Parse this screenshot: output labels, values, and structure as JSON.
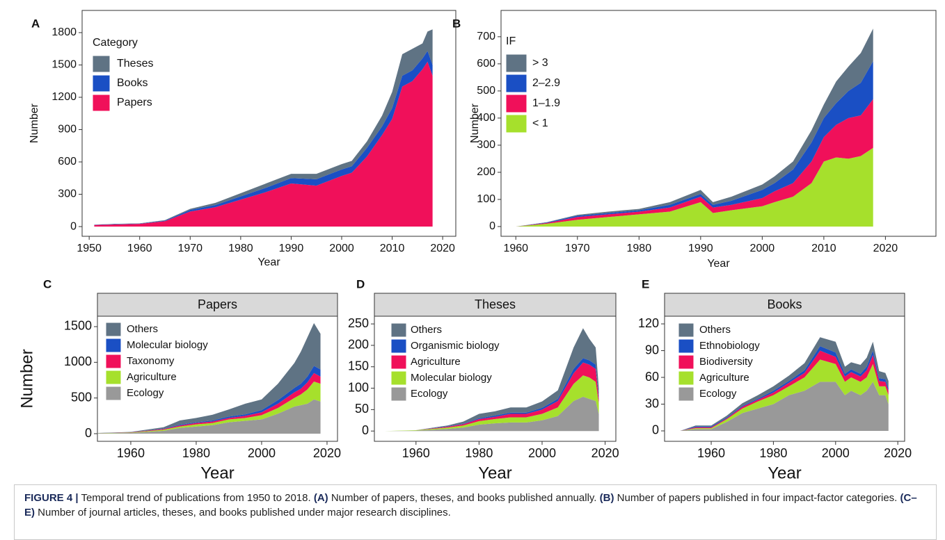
{
  "chart_data": [
    {
      "type": "area",
      "label": "A",
      "xlabel": "Year",
      "ylabel": "Number",
      "legend_title": "Category",
      "x": [
        1951,
        1955,
        1960,
        1965,
        1970,
        1975,
        1980,
        1985,
        1990,
        1995,
        2000,
        2002,
        2005,
        2008,
        2010,
        2012,
        2014,
        2016,
        2017,
        2018
      ],
      "series": [
        {
          "name": "Papers",
          "color": "#f0105a",
          "values": [
            15,
            20,
            25,
            50,
            140,
            180,
            250,
            320,
            400,
            380,
            470,
            500,
            650,
            850,
            1000,
            1300,
            1350,
            1460,
            1530,
            1400
          ]
        },
        {
          "name": "Books",
          "color": "#1a4fc4",
          "values": [
            2,
            3,
            3,
            5,
            15,
            20,
            30,
            40,
            50,
            60,
            60,
            60,
            80,
            80,
            100,
            100,
            100,
            100,
            100,
            100
          ]
        },
        {
          "name": "Theses",
          "color": "#5f7384",
          "values": [
            1,
            2,
            2,
            5,
            10,
            20,
            30,
            40,
            40,
            50,
            50,
            50,
            60,
            100,
            150,
            200,
            200,
            140,
            180,
            330
          ]
        }
      ],
      "xlim": [
        1948.6,
        2022.6
      ],
      "xticks": [
        1950,
        1960,
        1970,
        1980,
        1990,
        2000,
        2010,
        2020
      ],
      "ylim": [
        -90,
        2006
      ],
      "yticks": [
        0,
        300,
        600,
        900,
        1200,
        1500,
        1800
      ],
      "grid": false
    },
    {
      "type": "area",
      "label": "B",
      "xlabel": "Year",
      "ylabel": "Number",
      "legend_title": "IF",
      "x": [
        1960,
        1965,
        1970,
        1975,
        1980,
        1985,
        1990,
        1992,
        1995,
        2000,
        2002,
        2005,
        2008,
        2010,
        2012,
        2014,
        2016,
        2018
      ],
      "series": [
        {
          "name": "< 1",
          "color": "#a6e02c",
          "values": [
            0,
            10,
            25,
            35,
            45,
            55,
            90,
            50,
            60,
            75,
            90,
            110,
            160,
            240,
            255,
            250,
            260,
            290
          ]
        },
        {
          "name": "1–1.9",
          "color": "#f0105a",
          "values": [
            0,
            3,
            10,
            10,
            10,
            15,
            20,
            20,
            20,
            30,
            40,
            50,
            80,
            90,
            120,
            150,
            150,
            180
          ]
        },
        {
          "name": "2–2.9",
          "color": "#1a4fc4",
          "values": [
            0,
            2,
            5,
            5,
            5,
            10,
            10,
            10,
            15,
            30,
            30,
            50,
            70,
            70,
            80,
            100,
            120,
            140
          ]
        },
        {
          "name": "> 3",
          "color": "#5f7384",
          "values": [
            0,
            1,
            3,
            5,
            5,
            10,
            15,
            10,
            15,
            20,
            25,
            30,
            45,
            50,
            80,
            90,
            110,
            120
          ]
        }
      ],
      "xlim": [
        1957.6,
        2028.2
      ],
      "xticks": [
        1960,
        1970,
        1980,
        1990,
        2000,
        2010,
        2020
      ],
      "ylim": [
        -36,
        797
      ],
      "yticks": [
        0,
        100,
        200,
        300,
        400,
        500,
        600,
        700
      ],
      "grid": false
    },
    {
      "type": "area",
      "label": "C",
      "strip": "Papers",
      "xlabel": "Year",
      "ylabel": "Number",
      "x": [
        1950,
        1960,
        1970,
        1975,
        1980,
        1985,
        1990,
        1995,
        2000,
        2005,
        2010,
        2012,
        2014,
        2016,
        2018
      ],
      "series": [
        {
          "name": "Ecology",
          "color": "#999999",
          "values": [
            5,
            10,
            40,
            80,
            100,
            120,
            160,
            180,
            200,
            280,
            380,
            400,
            420,
            480,
            450
          ]
        },
        {
          "name": "Agriculture",
          "color": "#a6e02c",
          "values": [
            2,
            5,
            15,
            20,
            30,
            30,
            40,
            40,
            60,
            80,
            120,
            150,
            200,
            250,
            250
          ]
        },
        {
          "name": "Taxonomy",
          "color": "#f0105a",
          "values": [
            1,
            3,
            10,
            15,
            20,
            20,
            20,
            30,
            40,
            60,
            80,
            80,
            100,
            120,
            100
          ]
        },
        {
          "name": "Molecular biology",
          "color": "#1a4fc4",
          "values": [
            0,
            2,
            5,
            10,
            10,
            15,
            20,
            20,
            30,
            50,
            60,
            70,
            80,
            100,
            100
          ]
        },
        {
          "name": "Others",
          "color": "#5f7384",
          "values": [
            2,
            5,
            20,
            60,
            60,
            80,
            100,
            150,
            150,
            230,
            350,
            450,
            550,
            600,
            500
          ]
        }
      ],
      "xlim": [
        1949.8,
        2023.2
      ],
      "xticks": [
        1960,
        1980,
        2000,
        2020
      ],
      "ylim": [
        -107,
        1646
      ],
      "yticks": [
        0,
        500,
        1000,
        1500
      ],
      "grid": false
    },
    {
      "type": "area",
      "label": "D",
      "strip": "Theses",
      "xlabel": "Year",
      "x": [
        1950,
        1960,
        1970,
        1975,
        1980,
        1985,
        1990,
        1995,
        2000,
        2005,
        2010,
        2013,
        2015,
        2017,
        2018
      ],
      "series": [
        {
          "name": "Ecology",
          "color": "#999999",
          "values": [
            0,
            1,
            5,
            8,
            15,
            18,
            20,
            20,
            25,
            35,
            70,
            80,
            75,
            70,
            40
          ]
        },
        {
          "name": "Molecular biology",
          "color": "#a6e02c",
          "values": [
            0,
            1,
            3,
            5,
            8,
            10,
            12,
            12,
            15,
            20,
            40,
            50,
            50,
            45,
            25
          ]
        },
        {
          "name": "Agriculture",
          "color": "#f0105a",
          "values": [
            0,
            0,
            2,
            3,
            5,
            5,
            8,
            8,
            10,
            15,
            25,
            30,
            30,
            30,
            10
          ]
        },
        {
          "name": "Organismic biology",
          "color": "#1a4fc4",
          "values": [
            0,
            0,
            1,
            1,
            2,
            3,
            3,
            3,
            4,
            5,
            10,
            10,
            10,
            10,
            5
          ]
        },
        {
          "name": "Others",
          "color": "#5f7384",
          "values": [
            0,
            0,
            2,
            5,
            10,
            10,
            12,
            12,
            15,
            20,
            50,
            70,
            50,
            40,
            20
          ]
        }
      ],
      "xlim": [
        1946.8,
        2023.4
      ],
      "xticks": [
        1960,
        1980,
        2000,
        2020
      ],
      "ylim": [
        -24,
        268
      ],
      "yticks": [
        0,
        50,
        100,
        150,
        200,
        250
      ],
      "grid": false
    },
    {
      "type": "area",
      "label": "E",
      "strip": "Books",
      "xlabel": "Year",
      "x": [
        1950,
        1955,
        1960,
        1965,
        1970,
        1975,
        1980,
        1985,
        1990,
        1995,
        2000,
        2003,
        2005,
        2008,
        2010,
        2012,
        2014,
        2016,
        2017
      ],
      "series": [
        {
          "name": "Ecology",
          "color": "#999999",
          "values": [
            0,
            2,
            2,
            10,
            20,
            25,
            30,
            40,
            45,
            55,
            55,
            40,
            45,
            40,
            45,
            55,
            40,
            40,
            30
          ]
        },
        {
          "name": "Agriculture",
          "color": "#a6e02c",
          "values": [
            0,
            1,
            1,
            3,
            5,
            8,
            10,
            10,
            15,
            25,
            20,
            15,
            15,
            15,
            15,
            20,
            10,
            10,
            10
          ]
        },
        {
          "name": "Biodiversity",
          "color": "#f0105a",
          "values": [
            0,
            1,
            1,
            1,
            2,
            2,
            3,
            4,
            5,
            10,
            8,
            6,
            6,
            6,
            8,
            10,
            6,
            5,
            5
          ]
        },
        {
          "name": "Ethnobiology",
          "color": "#1a4fc4",
          "values": [
            0,
            1,
            1,
            1,
            1,
            1,
            2,
            2,
            3,
            5,
            5,
            3,
            3,
            3,
            4,
            5,
            3,
            3,
            3
          ]
        },
        {
          "name": "Others",
          "color": "#5f7384",
          "values": [
            0,
            1,
            1,
            2,
            3,
            4,
            5,
            6,
            8,
            10,
            12,
            8,
            8,
            10,
            10,
            10,
            8,
            7,
            8
          ]
        }
      ],
      "xlim": [
        1945,
        2022.2
      ],
      "xticks": [
        1960,
        1980,
        2000,
        2020
      ],
      "ylim": [
        -11.7,
        128.6
      ],
      "yticks": [
        0,
        30,
        60,
        90,
        120
      ],
      "grid": false
    }
  ],
  "caption": {
    "figure": "FIGURE 4 |",
    "text0": "Temporal trend of publications from 1950 to 2018.",
    "a": "(A)",
    "text1": "Number of papers, theses, and books published annually.",
    "b": "(B)",
    "text2": "Number of papers published in four impact-factor categories.",
    "ce": "(C–E)",
    "text3": "Number of journal articles, theses, and books published under major research disciplines."
  }
}
